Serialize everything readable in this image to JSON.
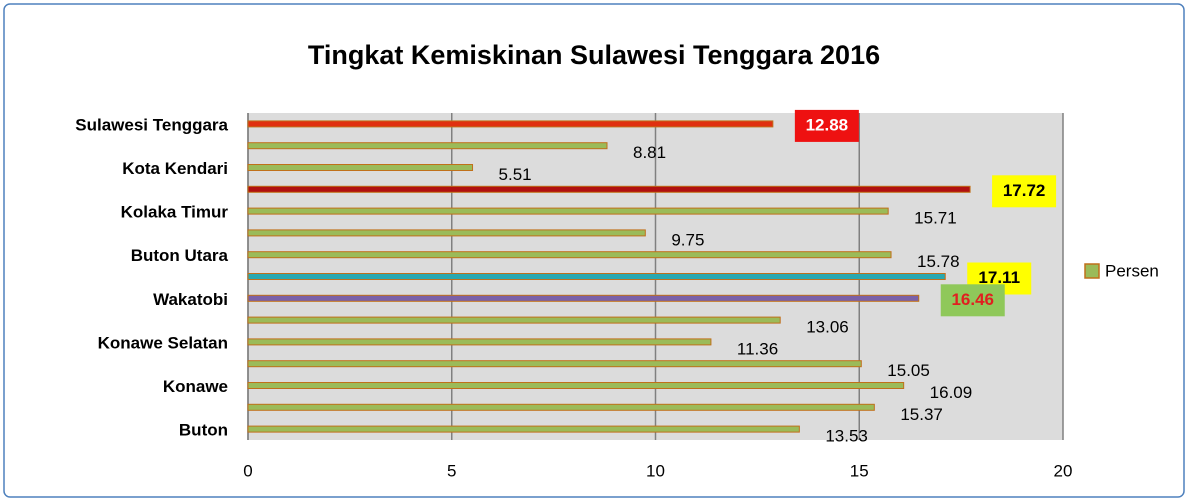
{
  "chart_data": {
    "type": "bar",
    "orientation": "horizontal",
    "title": "Tingkat Kemiskinan Sulawesi Tenggara 2016",
    "categories": [
      "Sulawesi Tenggara",
      null,
      "Kota Kendari",
      null,
      "Kolaka Timur",
      null,
      "Buton Utara",
      null,
      "Wakatobi",
      null,
      "Konawe Selatan",
      null,
      "Konawe",
      null,
      "Buton"
    ],
    "series": [
      {
        "name": "Persen",
        "color": "#9bbb59",
        "values": [
          12.88,
          8.81,
          5.51,
          17.72,
          15.71,
          9.75,
          15.78,
          17.11,
          16.46,
          13.06,
          11.36,
          15.05,
          16.09,
          15.37,
          13.53
        ],
        "colors": [
          "#e03010",
          "#9bbb59",
          "#9bbb59",
          "#b01010",
          "#9bbb59",
          "#9bbb59",
          "#9bbb59",
          "#2aa8b0",
          "#7a60a8",
          "#9bbb59",
          "#9bbb59",
          "#9bbb59",
          "#9bbb59",
          "#9bbb59",
          "#9bbb59"
        ],
        "label_backgrounds": [
          "#ee1111",
          null,
          null,
          "#ffff00",
          null,
          null,
          null,
          "#ffff00",
          "#8fc85a",
          null,
          null,
          null,
          null,
          null,
          null
        ],
        "label_colors": [
          "#ffffff",
          "#000000",
          "#000000",
          "#000000",
          "#000000",
          "#000000",
          "#000000",
          "#000000",
          "#e02020",
          "#000000",
          "#000000",
          "#000000",
          "#000000",
          "#000000",
          "#000000"
        ]
      }
    ],
    "xlim": [
      0,
      20
    ],
    "xticks": [
      0,
      5,
      10,
      15,
      20
    ],
    "grid": true,
    "legend": "right"
  }
}
